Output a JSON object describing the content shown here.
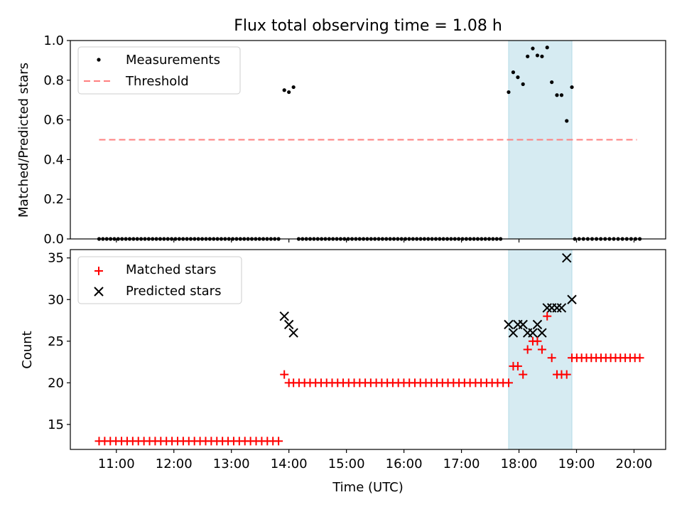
{
  "title": "Flux total observing time = 1.08 h",
  "colors": {
    "measurement": "#000000",
    "threshold": "#ff7f7f",
    "matched": "#ff0000",
    "predicted": "#000000",
    "highlight": "#add8e6"
  },
  "chart_data": [
    {
      "type": "scatter",
      "ylabel": "Matched/Predicted stars",
      "xlim": [
        10.2,
        20.55
      ],
      "ylim": [
        0,
        1.0
      ],
      "yticks": [
        0.0,
        0.2,
        0.4,
        0.6,
        0.8,
        1.0
      ],
      "ytick_labels": [
        "0.0",
        "0.2",
        "0.4",
        "0.6",
        "0.8",
        "1.0"
      ],
      "legend": {
        "position": "upper left",
        "entries": [
          "Measurements",
          "Threshold"
        ]
      },
      "highlight_span": [
        17.82,
        18.92
      ],
      "threshold": {
        "name": "Threshold",
        "value": 0.5,
        "x_range": [
          10.7,
          20.05
        ]
      },
      "series": [
        {
          "name": "Measurements",
          "segments": [
            {
              "x_start": 10.7,
              "x_end": 13.82,
              "count": 48,
              "value": 0.0
            },
            {
              "x_start": 14.17,
              "x_end": 17.68,
              "count": 54,
              "value": 0.0
            },
            {
              "x_start": 18.97,
              "x_end": 20.1,
              "count": 16,
              "value": 0.0
            }
          ],
          "points": [
            [
              13.92,
              0.75
            ],
            [
              14.0,
              0.74
            ],
            [
              14.08,
              0.765
            ],
            [
              17.82,
              0.74
            ],
            [
              17.9,
              0.84
            ],
            [
              17.98,
              0.815
            ],
            [
              18.07,
              0.78
            ],
            [
              18.15,
              0.92
            ],
            [
              18.24,
              0.96
            ],
            [
              18.32,
              0.925
            ],
            [
              18.4,
              0.92
            ],
            [
              18.49,
              0.965
            ],
            [
              18.57,
              0.79
            ],
            [
              18.66,
              0.725
            ],
            [
              18.74,
              0.725
            ],
            [
              18.83,
              0.595
            ],
            [
              18.92,
              0.765
            ]
          ]
        }
      ]
    },
    {
      "type": "scatter",
      "ylabel": "Count",
      "xlabel": "Time (UTC)",
      "xlim": [
        10.2,
        20.55
      ],
      "ylim": [
        12.0,
        36.0
      ],
      "yticks": [
        15,
        20,
        25,
        30,
        35
      ],
      "ytick_labels": [
        "15",
        "20",
        "25",
        "30",
        "35"
      ],
      "xticks": [
        11,
        12,
        13,
        14,
        15,
        16,
        17,
        18,
        19,
        20
      ],
      "xtick_labels": [
        "11:00",
        "12:00",
        "13:00",
        "14:00",
        "15:00",
        "16:00",
        "17:00",
        "18:00",
        "19:00",
        "20:00"
      ],
      "legend": {
        "position": "upper left",
        "entries": [
          "Matched stars",
          "Predicted stars"
        ]
      },
      "highlight_span": [
        17.82,
        18.92
      ],
      "series": [
        {
          "name": "Matched stars",
          "segments": [
            {
              "x_start": 10.7,
              "x_end": 13.82,
              "count": 33,
              "value": 13
            },
            {
              "x_start": 14.08,
              "x_end": 17.82,
              "count": 40,
              "value": 20
            },
            {
              "x_start": 18.92,
              "x_end": 20.1,
              "count": 15,
              "value": 23
            }
          ],
          "points": [
            [
              13.92,
              21
            ],
            [
              14.0,
              20
            ],
            [
              17.9,
              22
            ],
            [
              17.98,
              22
            ],
            [
              18.07,
              21
            ],
            [
              18.15,
              24
            ],
            [
              18.24,
              25
            ],
            [
              18.32,
              25
            ],
            [
              18.4,
              24
            ],
            [
              18.49,
              28
            ],
            [
              18.57,
              23
            ],
            [
              18.66,
              21
            ],
            [
              18.74,
              21
            ],
            [
              18.83,
              21
            ]
          ]
        },
        {
          "name": "Predicted stars",
          "points": [
            [
              13.92,
              28
            ],
            [
              14.0,
              27
            ],
            [
              14.08,
              26
            ],
            [
              17.82,
              27
            ],
            [
              17.9,
              26
            ],
            [
              17.98,
              27
            ],
            [
              18.07,
              27
            ],
            [
              18.15,
              26
            ],
            [
              18.24,
              26
            ],
            [
              18.32,
              27
            ],
            [
              18.4,
              26
            ],
            [
              18.49,
              29
            ],
            [
              18.57,
              29
            ],
            [
              18.66,
              29
            ],
            [
              18.74,
              29
            ],
            [
              18.83,
              35
            ],
            [
              18.92,
              30
            ]
          ]
        }
      ]
    }
  ]
}
